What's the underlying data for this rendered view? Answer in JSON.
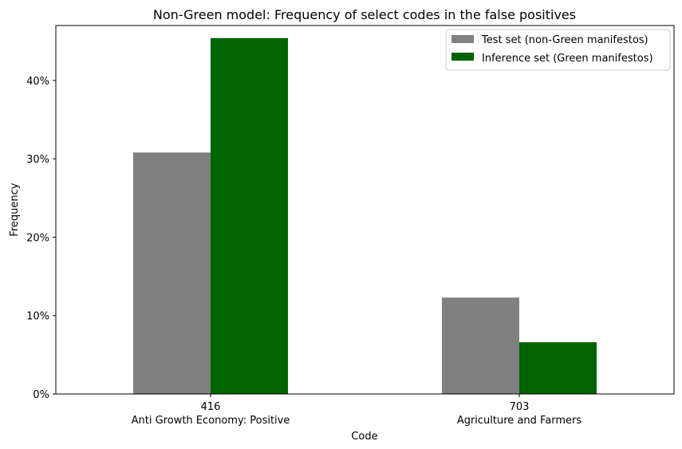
{
  "chart_data": {
    "type": "bar",
    "title": "Non-Green model: Frequency of select codes in the false positives",
    "xlabel": "Code",
    "ylabel": "Frequency",
    "categories": [
      "416",
      "703"
    ],
    "category_descriptions": [
      "Anti Growth Economy: Positive",
      "Agriculture and Farmers"
    ],
    "series": [
      {
        "name": "Test set (non-Green manifestos)",
        "color": "#808080",
        "values": [
          30.8,
          12.3
        ]
      },
      {
        "name": "Inference set (Green manifestos)",
        "color": "#006400",
        "values": [
          45.4,
          6.6
        ]
      }
    ],
    "ylim": [
      0,
      47
    ],
    "yticks": [
      0,
      10,
      20,
      30,
      40
    ],
    "ytick_labels": [
      "0%",
      "10%",
      "20%",
      "30%",
      "40%"
    ],
    "y_unit": "percent",
    "grid": false,
    "legend_position": "top-right"
  }
}
